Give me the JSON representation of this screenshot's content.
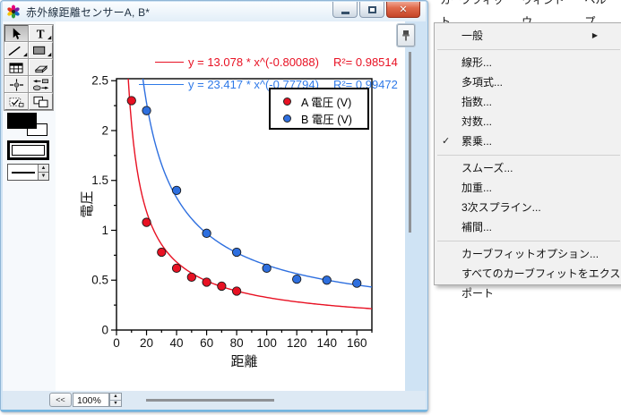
{
  "window": {
    "title": "赤外線距離センサーA, B*"
  },
  "toolbar": {
    "tools": [
      {
        "id": "pointer",
        "selected": true
      },
      {
        "id": "text",
        "selected": false
      },
      {
        "id": "line",
        "selected": false
      },
      {
        "id": "rect",
        "selected": false
      },
      {
        "id": "grid",
        "selected": false
      },
      {
        "id": "eraser",
        "selected": false
      },
      {
        "id": "crosshair",
        "selected": false
      },
      {
        "id": "arrange",
        "selected": false
      },
      {
        "id": "reshape",
        "selected": false
      },
      {
        "id": "overlap",
        "selected": false
      }
    ]
  },
  "equations": [
    {
      "formula": "y = 13.078 * x^(-0.80088)",
      "r2": "R²= 0.98514",
      "color": "#e81123"
    },
    {
      "formula": "y = 23.417 * x^(-0.77794)",
      "r2": "R²= 0.99472",
      "color": "#2e79e8"
    }
  ],
  "chart_data": {
    "type": "scatter",
    "title": "",
    "xlabel": "距離",
    "ylabel": "電圧",
    "xlim": [
      0,
      170
    ],
    "ylim": [
      0,
      2.52
    ],
    "x_major": 20,
    "x_minor": 10,
    "x_label_max": 160,
    "y_major": 0.5,
    "y_minor": 0.25,
    "y_label_max": 2.5,
    "grid": false,
    "legend_position": "upper right",
    "series": [
      {
        "name": "A 電圧 (V)",
        "color": "#e81123",
        "points": [
          [
            10,
            2.3
          ],
          [
            20,
            1.08
          ],
          [
            30,
            0.78
          ],
          [
            40,
            0.62
          ],
          [
            50,
            0.53
          ],
          [
            60,
            0.48
          ],
          [
            70,
            0.44
          ],
          [
            80,
            0.39
          ]
        ],
        "fit": {
          "type": "power",
          "a": 13.078,
          "b": -0.80088,
          "r2": 0.98514,
          "label": "y = 13.078 * x^(-0.80088)"
        }
      },
      {
        "name": "B 電圧 (V)",
        "color": "#2e6fdf",
        "points": [
          [
            20,
            2.2
          ],
          [
            40,
            1.4
          ],
          [
            60,
            0.97
          ],
          [
            80,
            0.78
          ],
          [
            100,
            0.62
          ],
          [
            120,
            0.51
          ],
          [
            140,
            0.5
          ],
          [
            160,
            0.47
          ]
        ],
        "fit": {
          "type": "power",
          "a": 23.417,
          "b": -0.77794,
          "r2": 0.99472,
          "label": "y = 23.417 * x^(-0.77794)"
        }
      }
    ]
  },
  "statusbar": {
    "collapse_label": "<<",
    "zoom_value": "100%"
  },
  "menu": {
    "bar": [
      "カーブフィット",
      "ウィンドウ",
      "ヘルプ"
    ],
    "dropdown": [
      {
        "label": "一般",
        "submenu": true
      },
      {
        "separator": true
      },
      {
        "label": "線形..."
      },
      {
        "label": "多項式..."
      },
      {
        "label": "指数..."
      },
      {
        "label": "対数..."
      },
      {
        "label": "累乗...",
        "checked": true
      },
      {
        "separator": true
      },
      {
        "label": "スムーズ..."
      },
      {
        "label": "加重..."
      },
      {
        "label": "3次スプライン..."
      },
      {
        "label": "補間..."
      },
      {
        "separator": true
      },
      {
        "label": "カーブフィットオプション..."
      },
      {
        "label": "すべてのカーブフィットをエクスポート"
      }
    ]
  }
}
